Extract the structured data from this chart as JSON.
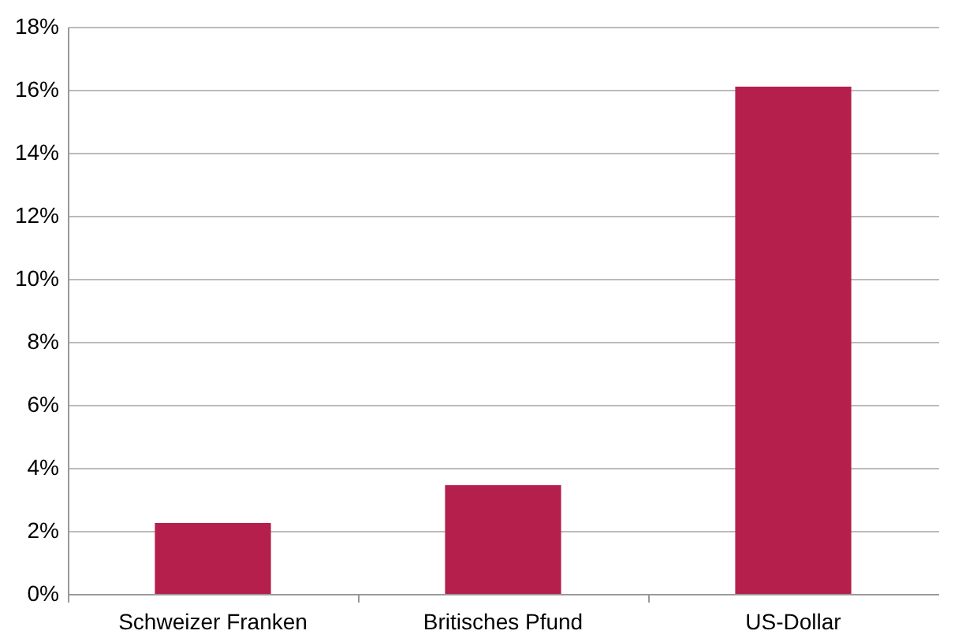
{
  "chart_data": {
    "type": "bar",
    "categories": [
      "Schweizer Franken",
      "Britisches Pfund",
      "US-Dollar"
    ],
    "values": [
      2.25,
      3.45,
      16.1
    ],
    "color": "#b41f4c",
    "ylim": [
      0,
      18
    ],
    "yticks": [
      {
        "value": 0,
        "label": "0%"
      },
      {
        "value": 2,
        "label": "2%"
      },
      {
        "value": 4,
        "label": "4%"
      },
      {
        "value": 6,
        "label": "6%"
      },
      {
        "value": 8,
        "label": "8%"
      },
      {
        "value": 10,
        "label": "10%"
      },
      {
        "value": 12,
        "label": "12%"
      },
      {
        "value": 14,
        "label": "14%"
      },
      {
        "value": 16,
        "label": "16%"
      },
      {
        "value": 18,
        "label": "18%"
      }
    ],
    "grid": "y"
  }
}
